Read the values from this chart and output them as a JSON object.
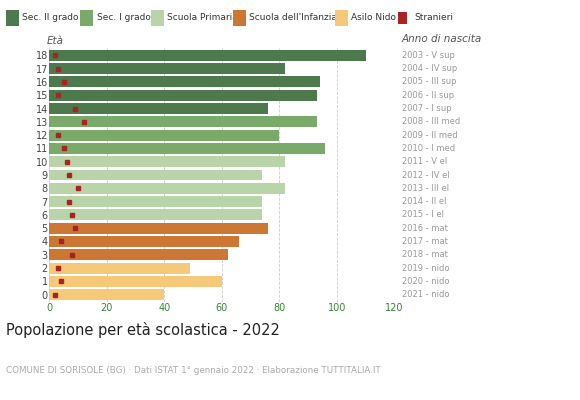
{
  "ages": [
    18,
    17,
    16,
    15,
    14,
    13,
    12,
    11,
    10,
    9,
    8,
    7,
    6,
    5,
    4,
    3,
    2,
    1,
    0
  ],
  "values": [
    110,
    82,
    94,
    93,
    76,
    93,
    80,
    96,
    82,
    74,
    82,
    74,
    74,
    76,
    66,
    62,
    49,
    60,
    40
  ],
  "stranieri": [
    2,
    3,
    5,
    3,
    9,
    12,
    3,
    5,
    6,
    7,
    10,
    7,
    8,
    9,
    4,
    8,
    3,
    4,
    2
  ],
  "bar_colors": [
    "#4d7a4d",
    "#4d7a4d",
    "#4d7a4d",
    "#4d7a4d",
    "#4d7a4d",
    "#7aaa6a",
    "#7aaa6a",
    "#7aaa6a",
    "#b8d4a8",
    "#b8d4a8",
    "#b8d4a8",
    "#b8d4a8",
    "#b8d4a8",
    "#cc7733",
    "#cc7733",
    "#cc7733",
    "#f5c87a",
    "#f5c87a",
    "#f5c87a"
  ],
  "right_labels": [
    "2003 - V sup",
    "2004 - IV sup",
    "2005 - III sup",
    "2006 - II sup",
    "2007 - I sup",
    "2008 - III med",
    "2009 - II med",
    "2010 - I med",
    "2011 - V el",
    "2012 - IV el",
    "2013 - III el",
    "2014 - II el",
    "2015 - I el",
    "2016 - mat",
    "2017 - mat",
    "2018 - mat",
    "2019 - nido",
    "2020 - nido",
    "2021 - nido"
  ],
  "legend_labels": [
    "Sec. II grado",
    "Sec. I grado",
    "Scuola Primaria",
    "Scuola dell'Infanzia",
    "Asilo Nido",
    "Stranieri"
  ],
  "legend_colors": [
    "#4d7a4d",
    "#7aaa6a",
    "#b8d4a8",
    "#cc7733",
    "#f5c87a",
    "#aa2222"
  ],
  "title": "Popolazione per età scolastica - 2022",
  "subtitle": "COMUNE DI SORISOLE (BG) · Dati ISTAT 1° gennaio 2022 · Elaborazione TUTTITALIA.IT",
  "eta_label": "Età",
  "anno_label": "Anno di nascita",
  "xlim": [
    0,
    120
  ],
  "xticks": [
    0,
    20,
    40,
    60,
    80,
    100,
    120
  ],
  "background_color": "#ffffff",
  "grid_color": "#cccccc",
  "stranieri_color": "#aa2222",
  "bar_height": 0.82
}
